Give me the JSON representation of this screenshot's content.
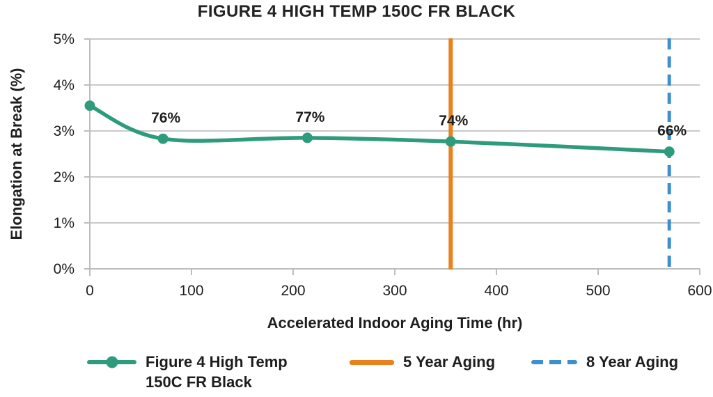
{
  "title": "FIGURE 4 HIGH TEMP 150C FR BLACK",
  "chart_data": {
    "type": "line",
    "title": "FIGURE 4 HIGH TEMP 150C FR BLACK",
    "xlabel": "Accelerated Indoor Aging Time (hr)",
    "ylabel": "Elongation at Break (%)",
    "xlim": [
      0,
      600
    ],
    "ylim": [
      0,
      5
    ],
    "x_tick_values": [
      0,
      100,
      200,
      300,
      400,
      500,
      600
    ],
    "x_tick_labels": [
      "0",
      "100",
      "200",
      "300",
      "400",
      "500",
      "600"
    ],
    "y_tick_values": [
      0,
      1,
      2,
      3,
      4,
      5
    ],
    "y_tick_labels": [
      "0%",
      "1%",
      "2%",
      "3%",
      "4%",
      "5%"
    ],
    "grid": "horizontal",
    "legend_position": "bottom",
    "series": [
      {
        "name": "Figure 4 High Temp 150C FR Black",
        "color": "#2E9C7C",
        "marker": "circle",
        "x": [
          0,
          72,
          214,
          355,
          570
        ],
        "y": [
          3.55,
          2.83,
          2.85,
          2.77,
          2.55
        ],
        "point_labels": [
          "",
          "76%",
          "77%",
          "74%",
          "66%"
        ]
      }
    ],
    "vlines": [
      {
        "name": "5 Year Aging",
        "x": 355,
        "color": "#E8821E",
        "style": "solid"
      },
      {
        "name": "8 Year Aging",
        "x": 570,
        "color": "#3E8FD0",
        "style": "dashed"
      }
    ],
    "colors": {
      "grid": "#C9C9C9",
      "axis": "#BDBDBD",
      "text": "#1E1E1E",
      "point_label": "#1F1F1F"
    }
  }
}
